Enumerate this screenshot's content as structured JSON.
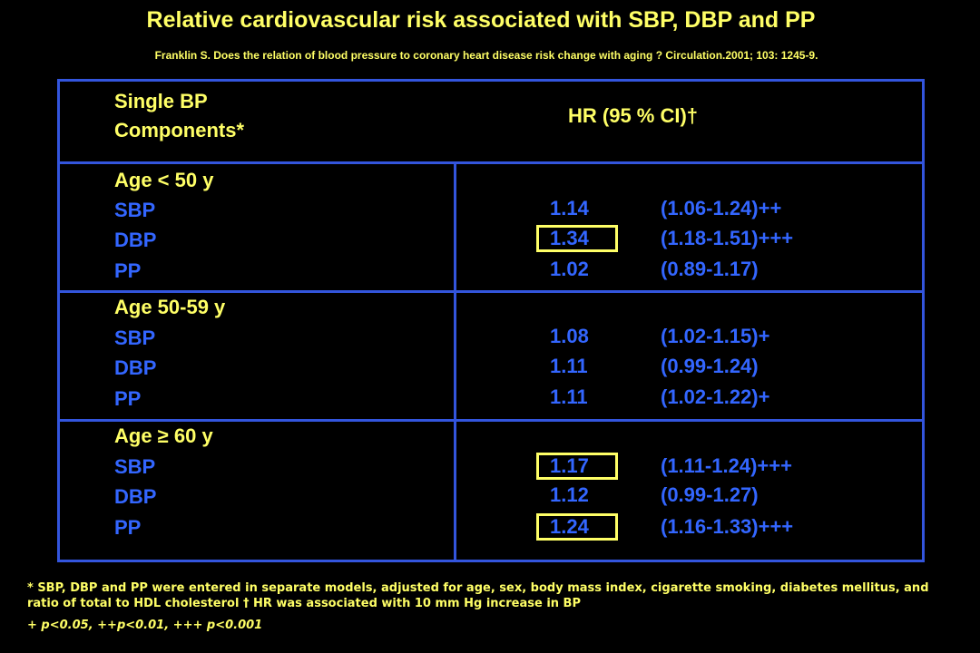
{
  "title": "Relative cardiovascular risk associated with SBP, DBP and PP",
  "citation": "Franklin S. Does the relation of blood pressure to coronary heart disease risk change with aging ? Circulation.2001; 103: 1245-9.",
  "header": {
    "component_line1": "Single BP",
    "component_line2": "Components*",
    "hr_label": "HR (95 % CI)†"
  },
  "groups": [
    {
      "age": "Age < 50 y",
      "rows": [
        {
          "component": "SBP",
          "hr": "1.14",
          "ci": "(1.06-1.24)++",
          "highlighted": false
        },
        {
          "component": "DBP",
          "hr": "1.34",
          "ci": "(1.18-1.51)+++",
          "highlighted": true
        },
        {
          "component": "PP",
          "hr": "1.02",
          "ci": "(0.89-1.17)",
          "highlighted": false
        }
      ]
    },
    {
      "age": "Age 50-59 y",
      "rows": [
        {
          "component": "SBP",
          "hr": "1.08",
          "ci": "(1.02-1.15)+",
          "highlighted": false
        },
        {
          "component": "DBP",
          "hr": "1.11",
          "ci": "(0.99-1.24)",
          "highlighted": false
        },
        {
          "component": "PP",
          "hr": "1.11",
          "ci": "(1.02-1.22)+",
          "highlighted": false
        }
      ]
    },
    {
      "age": "Age ≥ 60 y",
      "rows": [
        {
          "component": "SBP",
          "hr": "1.17",
          "ci": "(1.11-1.24)+++",
          "highlighted": true
        },
        {
          "component": "DBP",
          "hr": "1.12",
          "ci": "(0.99-1.27)",
          "highlighted": false
        },
        {
          "component": "PP",
          "hr": "1.24",
          "ci": "(1.16-1.33)+++",
          "highlighted": true
        }
      ]
    }
  ],
  "footnote": "* SBP, DBP and PP were entered in separate models, adjusted for age, sex, body mass index, cigarette smoking, diabetes mellitus, and ratio of total to HDL cholesterol  † HR was associated with 10 mm Hg increase in BP",
  "significance": "+ p<0.05, ++p<0.01, +++ p<0.001",
  "colors": {
    "background": "#000000",
    "heading_text": "#ffff66",
    "value_text": "#3366ff",
    "table_border": "#3355dd",
    "highlight_box": "#ffff66"
  }
}
